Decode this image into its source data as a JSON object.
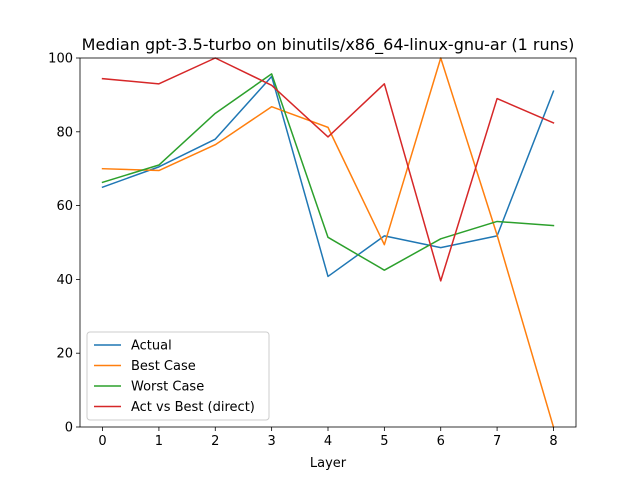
{
  "chart_data": {
    "type": "line",
    "title": "Median gpt-3.5-turbo on binutils/x86_64-linux-gnu-ar (1 runs)",
    "xlabel": "Layer",
    "ylabel": "",
    "x": [
      0,
      1,
      2,
      3,
      4,
      5,
      6,
      7,
      8
    ],
    "xlim": [
      -0.4,
      8.4
    ],
    "ylim": [
      0,
      100
    ],
    "xticks": [
      "0",
      "1",
      "2",
      "3",
      "4",
      "5",
      "6",
      "7",
      "8"
    ],
    "yticks": [
      "0",
      "20",
      "40",
      "60",
      "80",
      "100"
    ],
    "grid": false,
    "legend_position": "lower-left",
    "series": [
      {
        "name": "Actual",
        "color": "#1f77b4",
        "values": [
          65.0,
          70.5,
          78.0,
          95.0,
          40.8,
          51.8,
          48.6,
          51.8,
          91.0
        ]
      },
      {
        "name": "Best Case",
        "color": "#ff7f0e",
        "values": [
          70.0,
          69.5,
          76.5,
          86.8,
          81.2,
          49.4,
          100.0,
          52.0,
          0.0
        ]
      },
      {
        "name": "Worst Case",
        "color": "#2ca02c",
        "values": [
          66.3,
          71.0,
          85.0,
          95.7,
          51.4,
          42.5,
          51.0,
          55.7,
          54.6
        ]
      },
      {
        "name": "Act vs Best (direct)",
        "color": "#d62728",
        "values": [
          94.4,
          93.0,
          100.0,
          92.6,
          78.6,
          93.0,
          39.6,
          89.0,
          82.4
        ]
      }
    ]
  }
}
